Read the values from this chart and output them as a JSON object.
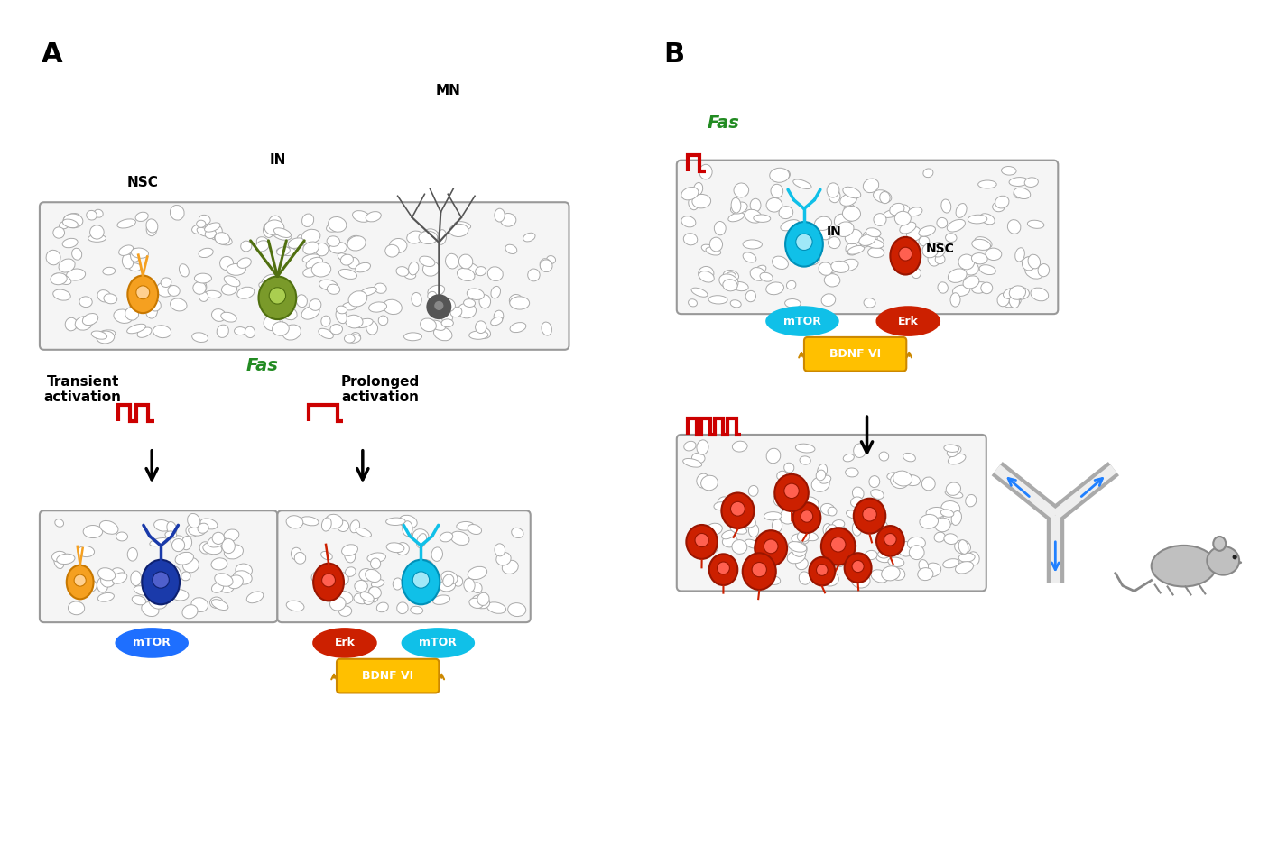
{
  "bg": "white",
  "colors": {
    "orange": "#F5A020",
    "green_cell": "#7A9A2A",
    "gray_neuron": "#555555",
    "blue_dark": "#1835A0",
    "blue_light": "#10C0E8",
    "red_cell": "#CC2000",
    "red_signal": "#CC0000",
    "mtor_blue": "#1E6FFF",
    "mtor_cyan": "#10C0E8",
    "erk_red": "#CC2000",
    "bdnf_yellow": "#FFC000",
    "green_fas": "#228B22",
    "tissue_bg": "#F5F5F5",
    "cell_wall": "#AAAAAA",
    "arrow_black": "#000000",
    "blue_flow": "#2080FF",
    "mouse_gray": "#BBBBBB",
    "junction_outer": "#AAAAAA",
    "junction_inner": "#EEEEEE"
  },
  "labels": {
    "A": "A",
    "B": "B",
    "MN": "MN",
    "IN": "IN",
    "NSC": "NSC",
    "Fas": "Fas",
    "transient": "Transient\nactivation",
    "prolonged": "Prolonged\nactivation",
    "mTOR": "mTOR",
    "Erk": "Erk",
    "BDNF": "BDNF VI"
  }
}
